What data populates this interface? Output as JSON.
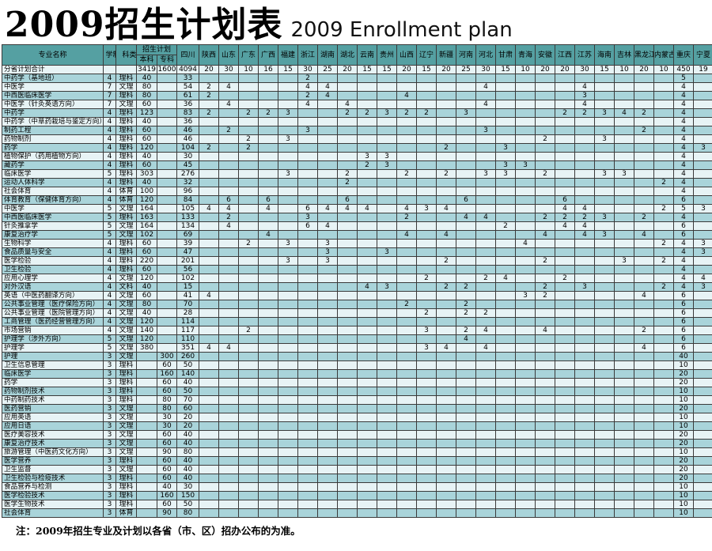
{
  "title": {
    "zh": "2009招生计划表",
    "en": "2009 Enrollment plan"
  },
  "note": "注：2009年招生专业及计划以各省（市、区）招办公布的为准。",
  "colors": {
    "header_bg": "#55a0a2",
    "row_dark": "#a9d4da",
    "row_light": "#e7f3f5",
    "border": "#3a3a3a"
  },
  "table": {
    "headers": {
      "major": "专业名称",
      "years": "学制",
      "category": "科类",
      "plan": "招生计划",
      "bachelor": "本科",
      "college": "专科",
      "provinces": [
        "四川",
        "陕西",
        "山东",
        "广东",
        "广西",
        "福建",
        "浙江",
        "湖南",
        "湖北",
        "云南",
        "贵州",
        "山西",
        "辽宁",
        "新疆",
        "河南",
        "河北",
        "甘肃",
        "青海",
        "安徽",
        "江西",
        "江苏",
        "海南",
        "吉林",
        "黑龙江",
        "内蒙古",
        "重庆",
        "宁夏"
      ]
    },
    "rows": [
      {
        "major": "分省计划合计",
        "years": "",
        "cat": "",
        "bk": "3419",
        "zk": "1600",
        "v": {
          "四川": 4094,
          "陕西": 20,
          "山东": 30,
          "广东": 10,
          "广西": 16,
          "福建": 15,
          "浙江": 30,
          "湖南": 25,
          "湖北": 20,
          "云南": 15,
          "贵州": 15,
          "山西": 20,
          "辽宁": 15,
          "新疆": 20,
          "河南": 25,
          "河北": 30,
          "甘肃": 15,
          "青海": 10,
          "安徽": 20,
          "江西": 20,
          "江苏": 30,
          "海南": 15,
          "吉林": 10,
          "黑龙江": 20,
          "内蒙古": 10,
          "重庆": 450,
          "宁夏": 19
        }
      },
      {
        "major": "中药学（基地班）",
        "years": "4",
        "cat": "理科",
        "bk": "40",
        "zk": "",
        "v": {
          "四川": 33,
          "浙江": 2,
          "重庆": 5
        }
      },
      {
        "major": "中医学",
        "years": "7",
        "cat": "文理",
        "bk": "80",
        "zk": "",
        "v": {
          "四川": 54,
          "陕西": 2,
          "山东": 4,
          "浙江": 4,
          "湖南": 4,
          "河北": 4,
          "江苏": 4,
          "重庆": 4
        }
      },
      {
        "major": "中西医临床医学",
        "years": "7",
        "cat": "理科",
        "bk": "80",
        "zk": "",
        "v": {
          "四川": 61,
          "陕西": 2,
          "浙江": 2,
          "湖南": 4,
          "山西": 4,
          "江苏": 3,
          "重庆": 4
        }
      },
      {
        "major": "中医学（针灸英语方向）",
        "years": "7",
        "cat": "文理",
        "bk": "60",
        "zk": "",
        "v": {
          "四川": 36,
          "山东": 4,
          "浙江": 4,
          "湖北": 4,
          "河北": 4,
          "江苏": 4,
          "重庆": 4
        }
      },
      {
        "major": "中药学",
        "years": "4",
        "cat": "理科",
        "bk": "123",
        "zk": "",
        "v": {
          "四川": 83,
          "陕西": 2,
          "广东": 2,
          "广西": 2,
          "福建": 3,
          "湖北": 2,
          "云南": 2,
          "贵州": 3,
          "山西": 2,
          "辽宁": 2,
          "河南": 3,
          "江西": 2,
          "江苏": 2,
          "海南": 3,
          "吉林": 4,
          "黑龙江": 2,
          "重庆": 4
        }
      },
      {
        "major": "中药学（中草药栽培与鉴定方向）",
        "years": "4",
        "cat": "理科",
        "bk": "40",
        "zk": "",
        "v": {
          "四川": 36,
          "重庆": 4
        }
      },
      {
        "major": "制药工程",
        "years": "4",
        "cat": "理科",
        "bk": "60",
        "zk": "",
        "v": {
          "四川": 46,
          "山东": 2,
          "浙江": 3,
          "河北": 3,
          "黑龙江": 2,
          "重庆": 4
        }
      },
      {
        "major": "药物制剂",
        "years": "4",
        "cat": "理科",
        "bk": "60",
        "zk": "",
        "v": {
          "四川": 46,
          "广东": 2,
          "福建": 3,
          "安徽": 2,
          "海南": 3,
          "重庆": 4
        }
      },
      {
        "major": "药学",
        "years": "4",
        "cat": "理科",
        "bk": "120",
        "zk": "",
        "v": {
          "四川": 104,
          "陕西": 2,
          "广东": 2,
          "新疆": 2,
          "甘肃": 3,
          "重庆": 4,
          "宁夏": 3
        }
      },
      {
        "major": "植物保护（药用植物方向）",
        "years": "4",
        "cat": "理科",
        "bk": "40",
        "zk": "",
        "v": {
          "四川": 30,
          "云南": 3,
          "贵州": 3,
          "重庆": 4
        }
      },
      {
        "major": "藏药学",
        "years": "4",
        "cat": "理科",
        "bk": "60",
        "zk": "",
        "v": {
          "四川": 45,
          "云南": 2,
          "贵州": 3,
          "甘肃": 3,
          "青海": 3,
          "重庆": 4
        }
      },
      {
        "major": "临床医学",
        "years": "5",
        "cat": "理科",
        "bk": "303",
        "zk": "",
        "v": {
          "四川": 276,
          "福建": 3,
          "湖北": 2,
          "山西": 2,
          "新疆": 2,
          "河北": 3,
          "甘肃": 3,
          "安徽": 2,
          "海南": 3,
          "吉林": 3,
          "重庆": 4
        }
      },
      {
        "major": "运动人体科学",
        "years": "4",
        "cat": "理科",
        "bk": "40",
        "zk": "",
        "v": {
          "四川": 32,
          "湖北": 2,
          "内蒙古": 2,
          "重庆": 4
        }
      },
      {
        "major": "社会体育",
        "years": "4",
        "cat": "体育",
        "bk": "100",
        "zk": "",
        "v": {
          "四川": 96,
          "重庆": 4
        }
      },
      {
        "major": "体育教育（保健体育方向）",
        "years": "4",
        "cat": "体育",
        "bk": "120",
        "zk": "",
        "v": {
          "四川": 84,
          "山东": 6,
          "广西": 6,
          "湖北": 6,
          "河南": 6,
          "江西": 6,
          "重庆": 6
        }
      },
      {
        "major": "中医学",
        "years": "5",
        "cat": "文理",
        "bk": "164",
        "zk": "",
        "v": {
          "四川": 105,
          "陕西": 4,
          "山东": 4,
          "广西": 4,
          "浙江": 6,
          "湖南": 4,
          "湖北": 4,
          "云南": 4,
          "山西": 4,
          "辽宁": 3,
          "新疆": 4,
          "江西": 4,
          "江苏": 4,
          "内蒙古": 2,
          "重庆": 5,
          "宁夏": 3
        }
      },
      {
        "major": "中西医临床医学",
        "years": "5",
        "cat": "理科",
        "bk": "163",
        "zk": "",
        "v": {
          "四川": 133,
          "山东": 2,
          "浙江": 3,
          "山西": 2,
          "河南": 4,
          "河北": 4,
          "安徽": 2,
          "江西": 2,
          "江苏": 2,
          "海南": 3,
          "黑龙江": 2,
          "重庆": 4
        }
      },
      {
        "major": "针灸推拿学",
        "years": "5",
        "cat": "文理",
        "bk": "164",
        "zk": "",
        "v": {
          "四川": 134,
          "山东": 4,
          "浙江": 6,
          "湖南": 4,
          "甘肃": 2,
          "江西": 4,
          "江苏": 4,
          "重庆": 6
        }
      },
      {
        "major": "康复治疗学",
        "years": "5",
        "cat": "文理",
        "bk": "102",
        "zk": "",
        "v": {
          "四川": 69,
          "广西": 4,
          "山西": 4,
          "新疆": 4,
          "安徽": 4,
          "江苏": 4,
          "海南": 3,
          "黑龙江": 4,
          "重庆": 6
        }
      },
      {
        "major": "生物科学",
        "years": "4",
        "cat": "理科",
        "bk": "60",
        "zk": "",
        "v": {
          "四川": 39,
          "广东": 2,
          "福建": 3,
          "湖南": 3,
          "青海": 4,
          "内蒙古": 2,
          "重庆": 4,
          "宁夏": 3
        }
      },
      {
        "major": "食品质量与安全",
        "years": "4",
        "cat": "理科",
        "bk": "60",
        "zk": "",
        "v": {
          "四川": 47,
          "湖南": 3,
          "贵州": 3,
          "重庆": 4,
          "宁夏": 3
        }
      },
      {
        "major": "医学检验",
        "years": "4",
        "cat": "理科",
        "bk": "220",
        "zk": "",
        "v": {
          "四川": 201,
          "福建": 3,
          "湖南": 3,
          "新疆": 2,
          "安徽": 2,
          "吉林": 3,
          "内蒙古": 2,
          "重庆": 4
        }
      },
      {
        "major": "卫生检验",
        "years": "4",
        "cat": "理科",
        "bk": "60",
        "zk": "",
        "v": {
          "四川": 56,
          "重庆": 4
        }
      },
      {
        "major": "应用心理学",
        "years": "4",
        "cat": "文理",
        "bk": "120",
        "zk": "",
        "v": {
          "四川": 102,
          "辽宁": 2,
          "河北": 2,
          "甘肃": 4,
          "江西": 2,
          "重庆": 4,
          "宁夏": 4
        }
      },
      {
        "major": "对外汉语",
        "years": "4",
        "cat": "文科",
        "bk": "40",
        "zk": "",
        "v": {
          "四川": 15,
          "云南": 4,
          "贵州": 3,
          "新疆": 2,
          "河南": 2,
          "安徽": 2,
          "江苏": 3,
          "内蒙古": 2,
          "重庆": 4,
          "宁夏": 3
        }
      },
      {
        "major": "英语（中医药翻译方向）",
        "years": "4",
        "cat": "文理",
        "bk": "60",
        "zk": "",
        "v": {
          "四川": 41,
          "陕西": 4,
          "青海": 3,
          "安徽": 2,
          "黑龙江": 4,
          "重庆": 6
        }
      },
      {
        "major": "公共事业管理（医疗保险方向）",
        "years": "4",
        "cat": "文理",
        "bk": "80",
        "zk": "",
        "v": {
          "四川": 70,
          "山西": 2,
          "河南": 2,
          "重庆": 6
        }
      },
      {
        "major": "公共事业管理（医院管理方向）",
        "years": "4",
        "cat": "文理",
        "bk": "40",
        "zk": "",
        "v": {
          "四川": 28,
          "辽宁": 2,
          "河南": 2,
          "河北": 2,
          "重庆": 6
        }
      },
      {
        "major": "工商管理（医药经营管理方向）",
        "years": "4",
        "cat": "文理",
        "bk": "120",
        "zk": "",
        "v": {
          "四川": 114,
          "重庆": 6
        }
      },
      {
        "major": "市场营销",
        "years": "4",
        "cat": "文理",
        "bk": "140",
        "zk": "",
        "v": {
          "四川": 117,
          "广东": 2,
          "辽宁": 3,
          "河南": 2,
          "河北": 4,
          "安徽": 4,
          "黑龙江": 2,
          "重庆": 6
        }
      },
      {
        "major": "护理学（涉外方向）",
        "years": "5",
        "cat": "文理",
        "bk": "120",
        "zk": "",
        "v": {
          "四川": 110,
          "河南": 4,
          "重庆": 6
        }
      },
      {
        "major": "护理学",
        "years": "5",
        "cat": "文理",
        "bk": "380",
        "zk": "",
        "v": {
          "四川": 351,
          "陕西": 4,
          "山东": 4,
          "辽宁": 3,
          "新疆": 4,
          "河北": 4,
          "黑龙江": 4,
          "重庆": 6
        }
      },
      {
        "major": "护理",
        "years": "3",
        "cat": "文理",
        "bk": "",
        "zk": "300",
        "v": {
          "四川": 260,
          "重庆": 40
        }
      },
      {
        "major": "卫生信息管理",
        "years": "3",
        "cat": "理科",
        "bk": "",
        "zk": "60",
        "v": {
          "四川": 50,
          "重庆": 10
        }
      },
      {
        "major": "临床医学",
        "years": "3",
        "cat": "理科",
        "bk": "",
        "zk": "160",
        "v": {
          "四川": 140,
          "重庆": 20
        }
      },
      {
        "major": "药学",
        "years": "3",
        "cat": "理科",
        "bk": "",
        "zk": "60",
        "v": {
          "四川": 40,
          "重庆": 20
        }
      },
      {
        "major": "药物制剂技术",
        "years": "3",
        "cat": "理科",
        "bk": "",
        "zk": "60",
        "v": {
          "四川": 50,
          "重庆": 10
        }
      },
      {
        "major": "中药制药技术",
        "years": "3",
        "cat": "理科",
        "bk": "",
        "zk": "80",
        "v": {
          "四川": 70,
          "重庆": 10
        }
      },
      {
        "major": "医药营销",
        "years": "3",
        "cat": "文理",
        "bk": "",
        "zk": "80",
        "v": {
          "四川": 60,
          "重庆": 20
        }
      },
      {
        "major": "应用英语",
        "years": "3",
        "cat": "文理",
        "bk": "",
        "zk": "30",
        "v": {
          "四川": 20,
          "重庆": 10
        }
      },
      {
        "major": "应用日语",
        "years": "3",
        "cat": "文理",
        "bk": "",
        "zk": "30",
        "v": {
          "四川": 20,
          "重庆": 10
        }
      },
      {
        "major": "医疗美容技术",
        "years": "3",
        "cat": "文理",
        "bk": "",
        "zk": "60",
        "v": {
          "四川": 40,
          "重庆": 20
        }
      },
      {
        "major": "康复治疗技术",
        "years": "3",
        "cat": "文理",
        "bk": "",
        "zk": "60",
        "v": {
          "四川": 40,
          "重庆": 20
        }
      },
      {
        "major": "旅游管理（中医药文化方向）",
        "years": "3",
        "cat": "文理",
        "bk": "",
        "zk": "90",
        "v": {
          "四川": 80,
          "重庆": 10
        }
      },
      {
        "major": "医学营养",
        "years": "3",
        "cat": "理科",
        "bk": "",
        "zk": "60",
        "v": {
          "四川": 40,
          "重庆": 20
        }
      },
      {
        "major": "卫生监督",
        "years": "3",
        "cat": "文理",
        "bk": "",
        "zk": "60",
        "v": {
          "四川": 40,
          "重庆": 20
        }
      },
      {
        "major": "卫生检验与检疫技术",
        "years": "3",
        "cat": "理科",
        "bk": "",
        "zk": "60",
        "v": {
          "四川": 40,
          "重庆": 20
        }
      },
      {
        "major": "食品营养与检测",
        "years": "3",
        "cat": "理科",
        "bk": "",
        "zk": "40",
        "v": {
          "四川": 30,
          "重庆": 10
        }
      },
      {
        "major": "医学检验技术",
        "years": "3",
        "cat": "理科",
        "bk": "",
        "zk": "160",
        "v": {
          "四川": 150,
          "重庆": 10
        }
      },
      {
        "major": "医学生物技术",
        "years": "3",
        "cat": "理科",
        "bk": "",
        "zk": "60",
        "v": {
          "四川": 50,
          "重庆": 10
        }
      },
      {
        "major": "社会体育",
        "years": "3",
        "cat": "体育",
        "bk": "",
        "zk": "90",
        "v": {
          "四川": 80,
          "重庆": 10
        }
      }
    ]
  }
}
